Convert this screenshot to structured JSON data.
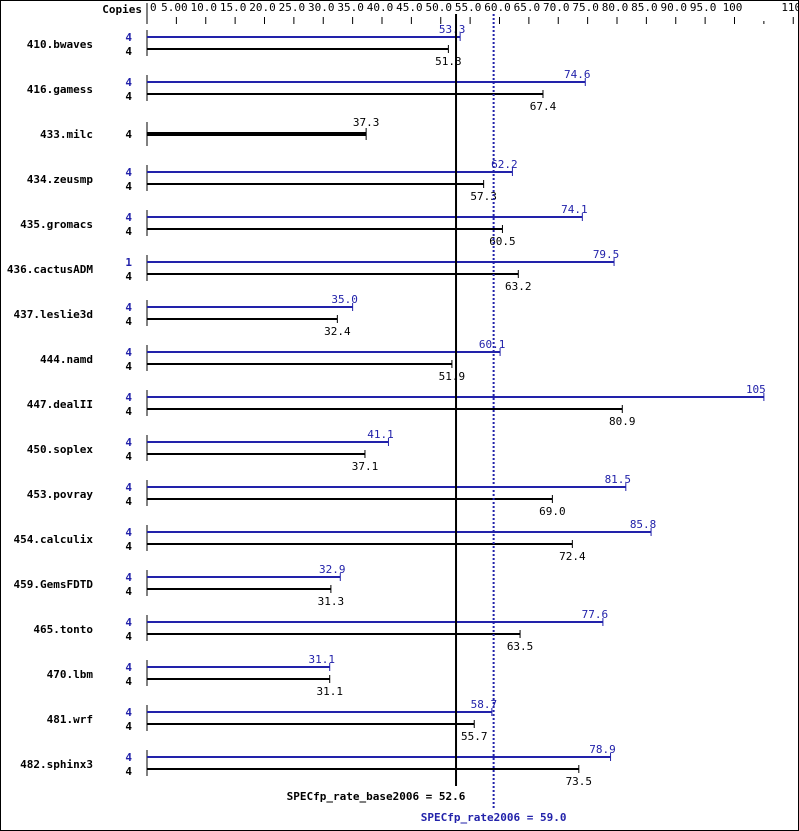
{
  "chart_data": {
    "type": "bar",
    "orientation": "horizontal",
    "copies_header": "Copies",
    "xlim": [
      0,
      110
    ],
    "tick_labels": [
      "0",
      "5.00",
      "10.0",
      "15.0",
      "20.0",
      "25.0",
      "30.0",
      "35.0",
      "40.0",
      "45.0",
      "50.0",
      "55.0",
      "60.0",
      "65.0",
      "70.0",
      "75.0",
      "80.0",
      "85.0",
      "90.0",
      "95.0",
      "100",
      "110"
    ],
    "tick_values": [
      0,
      5,
      10,
      15,
      20,
      25,
      30,
      35,
      40,
      45,
      50,
      55,
      60,
      65,
      70,
      75,
      80,
      85,
      90,
      95,
      100,
      110
    ],
    "grid": false,
    "colors": {
      "peak": "#2222aa",
      "base": "#000000"
    },
    "categories": [
      "410.bwaves",
      "416.gamess",
      "433.milc",
      "434.zeusmp",
      "435.gromacs",
      "436.cactusADM",
      "437.leslie3d",
      "444.namd",
      "447.dealII",
      "450.soplex",
      "453.povray",
      "454.calculix",
      "459.GemsFDTD",
      "465.tonto",
      "470.lbm",
      "481.wrf",
      "482.sphinx3"
    ],
    "series": [
      {
        "key": "peak",
        "copies": [
          "4",
          "4",
          null,
          "4",
          "4",
          "1",
          "4",
          "4",
          "4",
          "4",
          "4",
          "4",
          "4",
          "4",
          "4",
          "4",
          "4"
        ],
        "values": [
          53.3,
          74.6,
          null,
          62.2,
          74.1,
          79.5,
          35.0,
          60.1,
          105,
          41.1,
          81.5,
          85.8,
          32.9,
          77.6,
          31.1,
          58.7,
          78.9
        ],
        "labels": [
          "53.3",
          "74.6",
          null,
          "62.2",
          "74.1",
          "79.5",
          "35.0",
          "60.1",
          "105",
          "41.1",
          "81.5",
          "85.8",
          "32.9",
          "77.6",
          "31.1",
          "58.7",
          "78.9"
        ]
      },
      {
        "key": "base",
        "copies": [
          "4",
          "4",
          "4",
          "4",
          "4",
          "4",
          "4",
          "4",
          "4",
          "4",
          "4",
          "4",
          "4",
          "4",
          "4",
          "4",
          "4"
        ],
        "values": [
          51.3,
          67.4,
          37.3,
          57.3,
          60.5,
          63.2,
          32.4,
          51.9,
          80.9,
          37.1,
          69.0,
          72.4,
          31.3,
          63.5,
          31.1,
          55.7,
          73.5
        ],
        "labels": [
          "51.3",
          "67.4",
          "37.3",
          "57.3",
          "60.5",
          "63.2",
          "32.4",
          "51.9",
          "80.9",
          "37.1",
          "69.0",
          "72.4",
          "31.3",
          "63.5",
          "31.1",
          "55.7",
          "73.5"
        ]
      }
    ],
    "reference_lines": [
      {
        "key": "base",
        "value": 52.6,
        "label": "SPECfp_rate_base2006 = 52.6"
      },
      {
        "key": "peak",
        "value": 59.0,
        "label": "SPECfp_rate2006 = 59.0"
      }
    ]
  }
}
